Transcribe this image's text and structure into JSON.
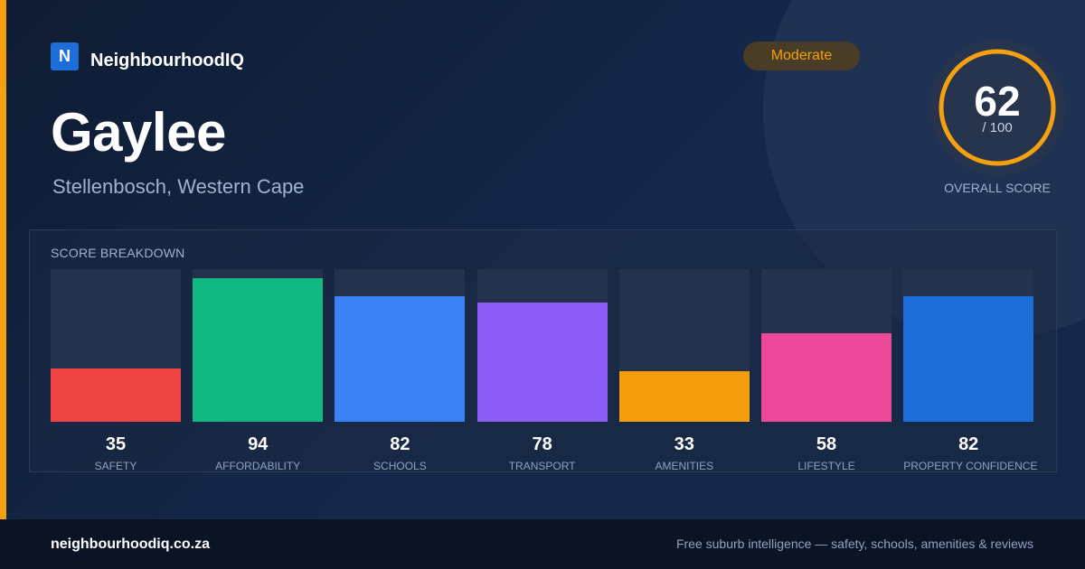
{
  "brand": {
    "logo_letter": "N",
    "name": "NeighbourhoodIQ"
  },
  "suburb": {
    "name": "Gaylee",
    "location": "Stellenbosch, Western Cape"
  },
  "badge": {
    "label": "Moderate",
    "color": "#f5a00f"
  },
  "overall": {
    "score": "62",
    "max_label": "/ 100",
    "score_fraction": 0.62,
    "caption": "OVERALL SCORE",
    "ring_color": "#f5a00f"
  },
  "breakdown": {
    "title": "SCORE BREAKDOWN",
    "items": [
      {
        "label": "SAFETY",
        "value": "35",
        "score": 35,
        "color": "#ef4444"
      },
      {
        "label": "AFFORDABILITY",
        "value": "94",
        "score": 94,
        "color": "#10b981"
      },
      {
        "label": "SCHOOLS",
        "value": "82",
        "score": 82,
        "color": "#3b82f6"
      },
      {
        "label": "TRANSPORT",
        "value": "78",
        "score": 78,
        "color": "#8b5cf6"
      },
      {
        "label": "AMENITIES",
        "value": "33",
        "score": 33,
        "color": "#f59e0b"
      },
      {
        "label": "LIFESTYLE",
        "value": "58",
        "score": 58,
        "color": "#ec4899"
      },
      {
        "label": "PROPERTY CONFIDENCE",
        "value": "82",
        "score": 82,
        "color": "#1d6ed8"
      }
    ]
  },
  "footer": {
    "url": "neighbourhoodiq.co.za",
    "tagline": "Free suburb intelligence — safety, schools, amenities & reviews"
  }
}
